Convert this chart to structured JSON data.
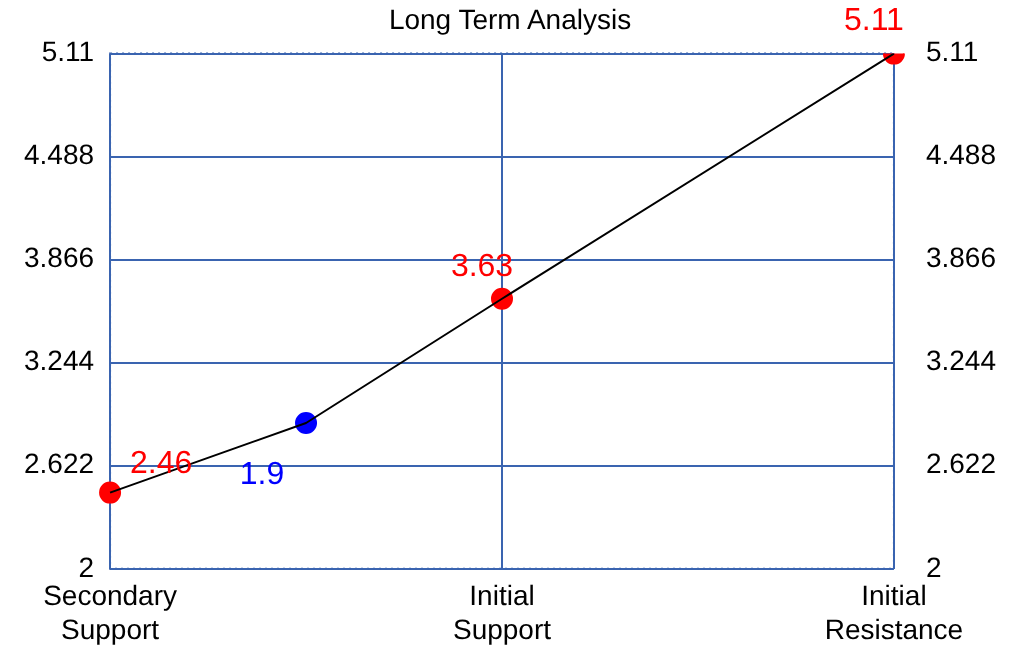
{
  "chart_data": {
    "type": "line",
    "title": "Long Term Analysis",
    "categories": [
      "Secondary Support",
      null,
      "Initial Support",
      null,
      "Initial Resistance"
    ],
    "ylim": [
      2,
      5.11
    ],
    "yticks": [
      2,
      2.622,
      3.244,
      3.866,
      4.488,
      5.11
    ],
    "y2lim": [
      2,
      5.11
    ],
    "y2ticks": [
      2,
      2.622,
      3.244,
      3.866,
      4.488,
      5.11
    ],
    "grid": true,
    "series": [
      {
        "type": "line",
        "color": "#000000",
        "values": [
          2.46,
          2.88,
          3.63,
          null,
          5.11
        ],
        "marker": "none"
      },
      {
        "type": "scatter",
        "color": "#ff0000",
        "values": [
          2.46,
          null,
          3.63,
          null,
          5.11
        ],
        "marker": "circle",
        "value_labels": [
          "2.46",
          null,
          "3.63",
          null,
          "5.11"
        ]
      },
      {
        "type": "scatter",
        "color": "#0000ff",
        "values": [
          null,
          2.88,
          null,
          null,
          null
        ],
        "marker": "circle"
      }
    ],
    "annotations": [
      "1.9"
    ]
  }
}
